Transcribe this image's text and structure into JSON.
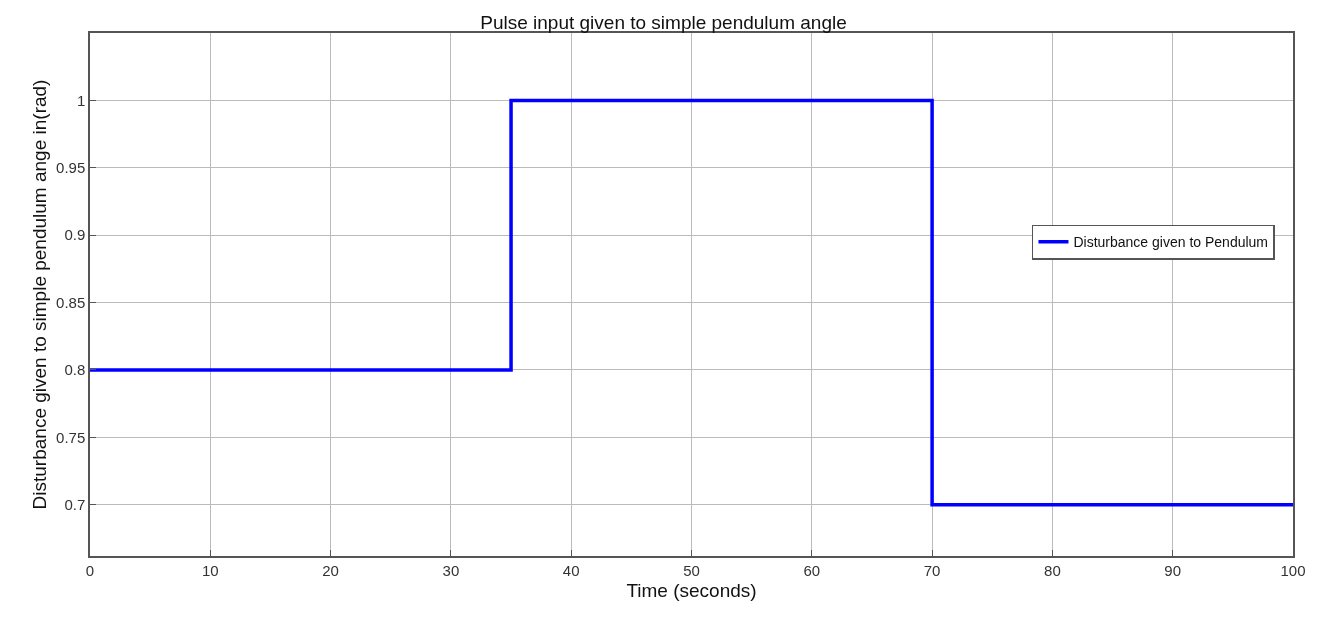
{
  "chart_data": {
    "type": "step",
    "title": "Pulse input given to simple pendulum angle",
    "xlabel": "Time (seconds)",
    "ylabel": "Disturbance given to simple pendulum ange in(rad)",
    "x": [
      0,
      35,
      70,
      100
    ],
    "series": [
      {
        "name": "Disturbance given to Pendulum",
        "color": "#0000ff",
        "values": [
          0.8,
          1,
          0.7,
          0.7
        ]
      }
    ],
    "xlim": [
      0,
      100
    ],
    "xticks": [
      0,
      10,
      20,
      30,
      40,
      50,
      60,
      70,
      80,
      90,
      100
    ],
    "ylim": [
      0.662,
      1.05
    ],
    "yticks": [
      0.7,
      0.75,
      0.8,
      0.85,
      0.9,
      0.95,
      1
    ],
    "grid": true,
    "legend": "right",
    "marker": "none",
    "line_style": "solid"
  }
}
